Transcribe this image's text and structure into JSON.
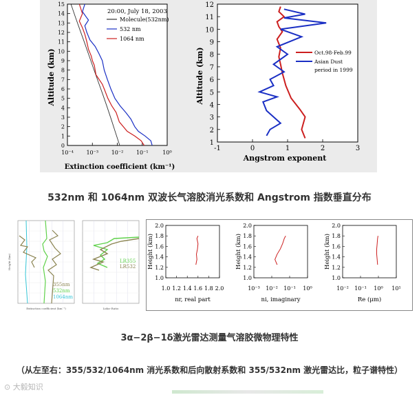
{
  "captions": {
    "caption_1": "532nm 和 1064nm 双波长气溶胶消光系数和 Angstrom 指数垂直分布",
    "caption_2": "3α−2β−1δ激光雷达测量气溶胶微物理特性",
    "caption_3": "（从左至右：355/532/1064nm 消光系数和后向散射系数和 355/532nm 激光雷达比，粒子谱特性）"
  },
  "watermark": "大毅知识",
  "colors": {
    "red": "#cc1f1f",
    "blue": "#1a2fc4",
    "cyan": "#33c4d6",
    "green": "#5fd14a",
    "olive": "#8a8350"
  },
  "chart_data": [
    {
      "type": "line",
      "title": "20:00, July 18, 2003",
      "xlabel": "Extinction coefficient (km⁻¹)",
      "ylabel": "Altitude (km)",
      "xscale": "log",
      "xlim": [
        0.0001,
        1
      ],
      "ylim": [
        0,
        15
      ],
      "xticks": [
        "10⁻⁴",
        "10⁻³",
        "10⁻²",
        "10⁻¹",
        "10⁰"
      ],
      "yticks": [
        "0",
        "1",
        "2",
        "3",
        "4",
        "5",
        "6",
        "7",
        "8",
        "9",
        "10",
        "11",
        "12",
        "13",
        "14",
        "15"
      ],
      "legend": {
        "position": "top-right",
        "entries": [
          "Molecule(532nm)",
          "532 nm",
          "1064 nm"
        ]
      },
      "series": [
        {
          "name": "Molecule(532nm)",
          "color": "#333333",
          "x": [
            0.0125,
            0.0085,
            0.0058,
            0.0039,
            0.0026,
            0.0017,
            0.00112,
            0.00074,
            0.00049,
            0.00032,
            0.00021,
            0.00014
          ],
          "y": [
            0,
            1.36,
            2.72,
            4.08,
            5.44,
            6.8,
            8.16,
            9.52,
            10.88,
            12.24,
            13.6,
            14.96
          ]
        },
        {
          "name": "532 nm",
          "color": "#1a2fc4",
          "x": [
            0.25,
            0.22,
            0.13,
            0.07,
            0.05,
            0.035,
            0.022,
            0.013,
            0.008,
            0.0055,
            0.004,
            0.003,
            0.0025,
            0.0018,
            0.0013,
            0.0008,
            0.0006,
            0.0005,
            0.0007,
            0.0004,
            0.0005
          ],
          "y": [
            0,
            0.5,
            1.0,
            1.5,
            2.0,
            2.8,
            3.5,
            4.2,
            5.0,
            6.0,
            7.0,
            8.0,
            9.0,
            9.8,
            10.5,
            11.2,
            12.0,
            12.7,
            13.3,
            14.2,
            15.0
          ]
        },
        {
          "name": "1064 nm",
          "color": "#cc1f1f",
          "x": [
            0.12,
            0.09,
            0.05,
            0.025,
            0.012,
            0.009,
            0.006,
            0.0042,
            0.003,
            0.0025,
            0.0014,
            0.0012,
            0.001,
            0.0009,
            0.0007,
            0.0006,
            0.0005,
            0.0004,
            0.0003,
            0.0004,
            0.0003
          ],
          "y": [
            0,
            0.5,
            1.0,
            1.5,
            2.5,
            3.5,
            4.2,
            5.0,
            6.0,
            6.5,
            7.5,
            8.5,
            9.0,
            9.5,
            10.2,
            11.0,
            11.8,
            12.5,
            13.2,
            14.0,
            15.0
          ]
        }
      ]
    },
    {
      "type": "line",
      "xlabel": "Angstrom exponent",
      "ylabel": "Altitude (km)",
      "xlim": [
        -1,
        3
      ],
      "ylim": [
        1,
        12
      ],
      "xticks": [
        "-1",
        "0",
        "1",
        "2",
        "3"
      ],
      "yticks": [
        "1",
        "2",
        "3",
        "4",
        "5",
        "6",
        "7",
        "8",
        "9",
        "10",
        "11",
        "12"
      ],
      "legend": {
        "position": "top-right",
        "entries": [
          "Oct.98-Feb.99",
          "Asian Dust period in 1999"
        ]
      },
      "series": [
        {
          "name": "Oct.98-Feb.99",
          "color": "#cc1f1f",
          "x": [
            1.5,
            1.4,
            1.5,
            1.35,
            1.1,
            0.95,
            0.85,
            0.8,
            0.75,
            0.8,
            0.7,
            0.85,
            0.75,
            0.7,
            0.9,
            0.75,
            0.8
          ],
          "y": [
            1.3,
            2.0,
            3.0,
            3.6,
            4.5,
            5.5,
            6.5,
            7.2,
            7.8,
            8.5,
            9.2,
            9.8,
            10.2,
            10.6,
            11.0,
            11.4,
            11.8
          ]
        },
        {
          "name": "Asian Dust period in 1999",
          "color": "#1a2fc4",
          "x": [
            0.4,
            0.5,
            0.8,
            0.6,
            0.4,
            0.3,
            0.7,
            0.2,
            0.6,
            0.5,
            0.9,
            0.6,
            1.0,
            0.7,
            1.4,
            0.8,
            2.1,
            0.9,
            1.5,
            0.9
          ],
          "y": [
            1.5,
            2.0,
            2.5,
            3.0,
            3.5,
            4.2,
            4.6,
            5.0,
            5.5,
            6.0,
            6.6,
            7.2,
            8.0,
            8.6,
            9.4,
            10.0,
            10.5,
            10.9,
            11.2,
            11.6
          ]
        }
      ]
    },
    {
      "type": "line",
      "xlabel": "Extinction coefficient (km⁻¹)",
      "ylabel": "Height (km)",
      "legend": {
        "position": "bottom",
        "entries": [
          "355nm",
          "532nm",
          "1064nm"
        ]
      },
      "series": [
        {
          "name": "355nm",
          "color": "#8a8350"
        },
        {
          "name": "532nm",
          "color": "#5fd14a"
        },
        {
          "name": "1064nm",
          "color": "#33c4d6"
        }
      ]
    },
    {
      "type": "line",
      "xlabel": "Lidar Ratio",
      "legend": {
        "position": "bottom-right",
        "entries": [
          "LR355",
          "LR532"
        ]
      },
      "series": [
        {
          "name": "LR355",
          "color": "#5fd14a"
        },
        {
          "name": "LR532",
          "color": "#8a8350"
        }
      ]
    },
    {
      "type": "line",
      "xlabel": "nr, real part",
      "ylabel": "Height (km)",
      "xlim": [
        1.0,
        2.0
      ],
      "ylim": [
        1.0,
        2.0
      ],
      "xticks": [
        "1.0",
        "1.2",
        "1.4",
        "1.6",
        "1.8",
        "2.0"
      ],
      "yticks": [
        "1.0",
        "1.2",
        "1.4",
        "1.6",
        "1.8",
        "2.0"
      ],
      "series": [
        {
          "color": "#cc1f1f",
          "x": [
            1.56,
            1.58,
            1.57,
            1.59,
            1.6,
            1.58,
            1.6
          ],
          "y": [
            1.25,
            1.35,
            1.45,
            1.55,
            1.65,
            1.75,
            1.8
          ]
        }
      ]
    },
    {
      "type": "line",
      "xlabel": "ni, imaginary",
      "ylabel": "Height (km)",
      "xscale": "log",
      "xlim": [
        0.001,
        1
      ],
      "ylim": [
        1.0,
        2.0
      ],
      "xticks": [
        "10⁻³",
        "10⁻²",
        "10⁻¹",
        "10⁰"
      ],
      "yticks": [
        "1.0",
        "1.2",
        "1.4",
        "1.6",
        "1.8",
        "2.0"
      ],
      "series": [
        {
          "color": "#cc1f1f",
          "x": [
            0.02,
            0.015,
            0.02,
            0.03,
            0.04,
            0.05,
            0.06
          ],
          "y": [
            1.25,
            1.35,
            1.45,
            1.55,
            1.65,
            1.75,
            1.8
          ]
        }
      ]
    },
    {
      "type": "line",
      "xlabel": "Re (μm)",
      "ylabel": "Height (km)",
      "xscale": "log",
      "xlim": [
        0.01,
        10
      ],
      "ylim": [
        1.0,
        2.0
      ],
      "xticks": [
        "10⁻²",
        "10⁻¹",
        "10⁰",
        "10¹"
      ],
      "yticks": [
        "1.0",
        "1.2",
        "1.4",
        "1.6",
        "1.8",
        "2.0"
      ],
      "series": [
        {
          "color": "#cc1f1f",
          "x": [
            0.9,
            0.85,
            0.8,
            0.8,
            0.85,
            0.9,
            0.95
          ],
          "y": [
            1.25,
            1.35,
            1.45,
            1.55,
            1.65,
            1.75,
            1.8
          ]
        }
      ]
    }
  ]
}
